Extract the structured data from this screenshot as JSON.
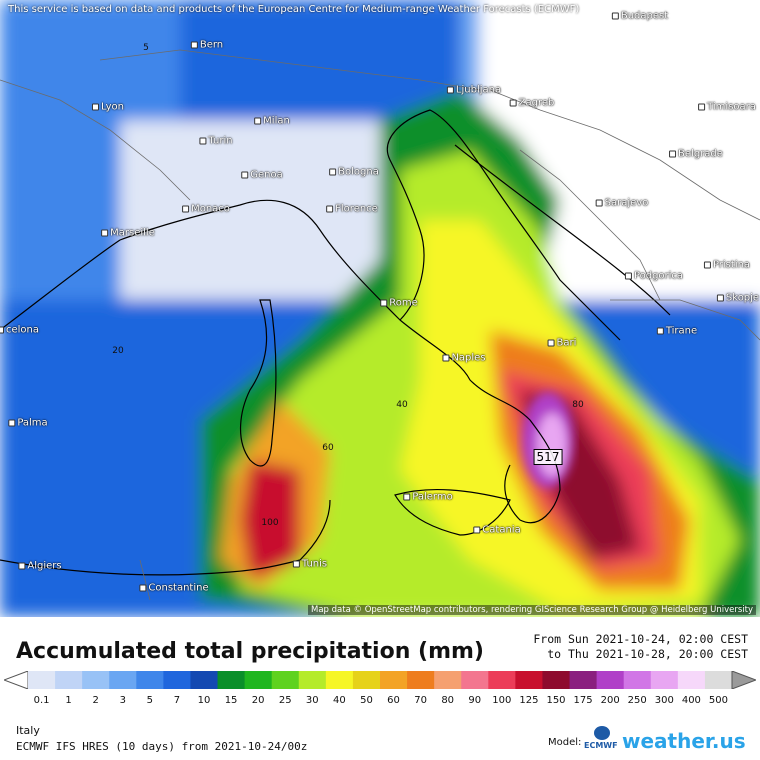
{
  "map": {
    "notice": "This service is based on data and products of the European Centre for Medium-range Weather Forecasts (ECMWF)",
    "attribution": "Map data © OpenStreetMap contributors, rendering GIScience Research Group @ Heidelberg University",
    "max_value": "517",
    "cities": {
      "budapest": "Budapest",
      "bern": "Bern",
      "ljubljana": "Ljubljana",
      "zagreb": "Zagreb",
      "lyon": "Lyon",
      "milan": "Milan",
      "timisoara": "Timisoara",
      "turin": "Turin",
      "belgrade": "Belgrade",
      "genoa": "Genoa",
      "bologna": "Bologna",
      "monaco": "Monaco",
      "florence": "Florence",
      "sarajevo": "Sarajevo",
      "marseille": "Marseille",
      "podgorica": "Podgorica",
      "pristina": "Pristina",
      "skopje": "Skopje",
      "rome": "Rome",
      "barcelona": "celona",
      "tirane": "Tirane",
      "bari": "Bari",
      "naples": "Naples",
      "palma": "Palma",
      "palermo": "Palermo",
      "catania": "Catania",
      "algiers": "Algiers",
      "tunis": "Tunis",
      "constantine": "Constantine"
    },
    "contour_labels": [
      "5",
      "20",
      "40",
      "60",
      "80",
      "100"
    ]
  },
  "footer": {
    "title": "Accumulated total precipitation (mm)",
    "period_from": "From Sun 2021-10-24, 02:00 CEST",
    "period_to": "to Thu 2021-10-28, 20:00 CEST",
    "region": "Italy",
    "model_run": "ECMWF IFS HRES (10 days) from  2021-10-24/00z",
    "model_label": "Model:",
    "ecmwf_logo": "ECMWF",
    "brand": "weather.us"
  },
  "legend": {
    "labels": [
      "0.1",
      "1",
      "2",
      "3",
      "5",
      "7",
      "10",
      "15",
      "20",
      "25",
      "30",
      "40",
      "50",
      "60",
      "70",
      "80",
      "90",
      "100",
      "125",
      "150",
      "175",
      "200",
      "250",
      "300",
      "400",
      "500"
    ],
    "colors": [
      "#dfe6f6",
      "#c0d4f6",
      "#98c2f6",
      "#6aa6f2",
      "#3f86ea",
      "#1f66dd",
      "#1449b2",
      "#0a8f2a",
      "#1fb61f",
      "#5fd21f",
      "#b5eb2a",
      "#f6f626",
      "#e6d21a",
      "#f3a325",
      "#ee7d1e",
      "#f5a070",
      "#f3768f",
      "#ec3d59",
      "#c8102e",
      "#8e0b2e",
      "#8a1f7f",
      "#b040c8",
      "#d176e6",
      "#e8a6f2",
      "#f6d8fa",
      "#dcdcdc"
    ]
  }
}
